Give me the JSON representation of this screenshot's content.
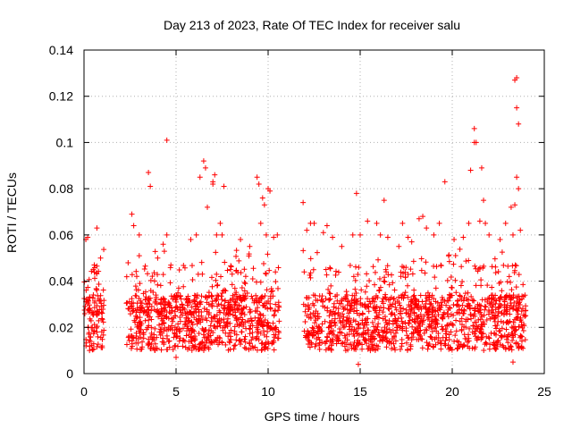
{
  "chart_data": {
    "type": "scatter",
    "title": "Day 213 of 2023, Rate Of TEC Index for receiver salu",
    "xlabel": "GPS time / hours",
    "ylabel": "ROTI / TECUs",
    "xlim": [
      0,
      25
    ],
    "ylim": [
      0,
      0.14
    ],
    "x_ticks": [
      0,
      5,
      10,
      15,
      20,
      25
    ],
    "x_tick_labels": [
      "0",
      "5",
      "10",
      "15",
      "20",
      "25"
    ],
    "y_ticks": [
      0,
      0.02,
      0.04,
      0.06,
      0.08,
      0.1,
      0.12,
      0.14
    ],
    "y_tick_labels": [
      "0",
      "0.02",
      "0.04",
      "0.06",
      "0.08",
      "0.1",
      "0.12",
      "0.14"
    ],
    "grid": true,
    "marker": "+",
    "color": "#ff0000",
    "data_gaps_hours": [
      [
        1.1,
        2.3
      ],
      [
        10.6,
        11.9
      ]
    ],
    "series": [
      {
        "name": "ROTI",
        "points": [
          [
            0.1,
            0.058
          ],
          [
            0.2,
            0.059
          ],
          [
            0.7,
            0.063
          ],
          [
            0.9,
            0.05
          ],
          [
            0.5,
            0.045
          ],
          [
            2.6,
            0.069
          ],
          [
            2.7,
            0.064
          ],
          [
            3.0,
            0.06
          ],
          [
            3.5,
            0.087
          ],
          [
            3.6,
            0.081
          ],
          [
            3.0,
            0.051
          ],
          [
            4.5,
            0.101
          ],
          [
            4.5,
            0.06
          ],
          [
            4.3,
            0.056
          ],
          [
            4.0,
            0.05
          ],
          [
            5.8,
            0.058
          ],
          [
            6.1,
            0.06
          ],
          [
            6.3,
            0.085
          ],
          [
            6.5,
            0.092
          ],
          [
            6.6,
            0.089
          ],
          [
            6.7,
            0.072
          ],
          [
            7.0,
            0.083
          ],
          [
            7.0,
            0.082
          ],
          [
            7.1,
            0.086
          ],
          [
            7.4,
            0.065
          ],
          [
            7.6,
            0.081
          ],
          [
            7.2,
            0.06
          ],
          [
            7.5,
            0.06
          ],
          [
            8.5,
            0.058
          ],
          [
            9.0,
            0.055
          ],
          [
            9.4,
            0.085
          ],
          [
            9.5,
            0.082
          ],
          [
            9.7,
            0.076
          ],
          [
            9.8,
            0.073
          ],
          [
            10.0,
            0.08
          ],
          [
            10.1,
            0.079
          ],
          [
            9.6,
            0.065
          ],
          [
            9.9,
            0.06
          ],
          [
            10.3,
            0.059
          ],
          [
            10.5,
            0.06
          ],
          [
            11.9,
            0.074
          ],
          [
            12.1,
            0.062
          ],
          [
            12.3,
            0.065
          ],
          [
            12.5,
            0.065
          ],
          [
            13.0,
            0.061
          ],
          [
            13.2,
            0.064
          ],
          [
            13.5,
            0.059
          ],
          [
            14.0,
            0.055
          ],
          [
            14.6,
            0.06
          ],
          [
            14.8,
            0.078
          ],
          [
            15.0,
            0.06
          ],
          [
            15.4,
            0.066
          ],
          [
            15.9,
            0.065
          ],
          [
            16.1,
            0.06
          ],
          [
            16.3,
            0.075
          ],
          [
            16.5,
            0.059
          ],
          [
            17.1,
            0.055
          ],
          [
            17.3,
            0.065
          ],
          [
            17.6,
            0.059
          ],
          [
            17.8,
            0.057
          ],
          [
            18.2,
            0.067
          ],
          [
            18.4,
            0.068
          ],
          [
            18.6,
            0.063
          ],
          [
            19.0,
            0.06
          ],
          [
            19.3,
            0.065
          ],
          [
            19.6,
            0.083
          ],
          [
            20.1,
            0.058
          ],
          [
            20.6,
            0.059
          ],
          [
            20.9,
            0.065
          ],
          [
            21.0,
            0.088
          ],
          [
            21.2,
            0.1
          ],
          [
            21.2,
            0.106
          ],
          [
            21.3,
            0.1
          ],
          [
            21.6,
            0.089
          ],
          [
            21.7,
            0.075
          ],
          [
            21.8,
            0.065
          ],
          [
            21.5,
            0.066
          ],
          [
            22.0,
            0.06
          ],
          [
            22.6,
            0.058
          ],
          [
            22.9,
            0.065
          ],
          [
            23.2,
            0.072
          ],
          [
            23.3,
            0.06
          ],
          [
            23.4,
            0.073
          ],
          [
            23.5,
            0.085
          ],
          [
            23.6,
            0.08
          ],
          [
            23.4,
            0.127
          ],
          [
            23.5,
            0.128
          ],
          [
            23.5,
            0.115
          ],
          [
            23.6,
            0.108
          ],
          [
            23.7,
            0.062
          ],
          [
            14.9,
            0.004
          ],
          [
            23.3,
            0.005
          ],
          [
            5.0,
            0.007
          ]
        ]
      }
    ]
  }
}
